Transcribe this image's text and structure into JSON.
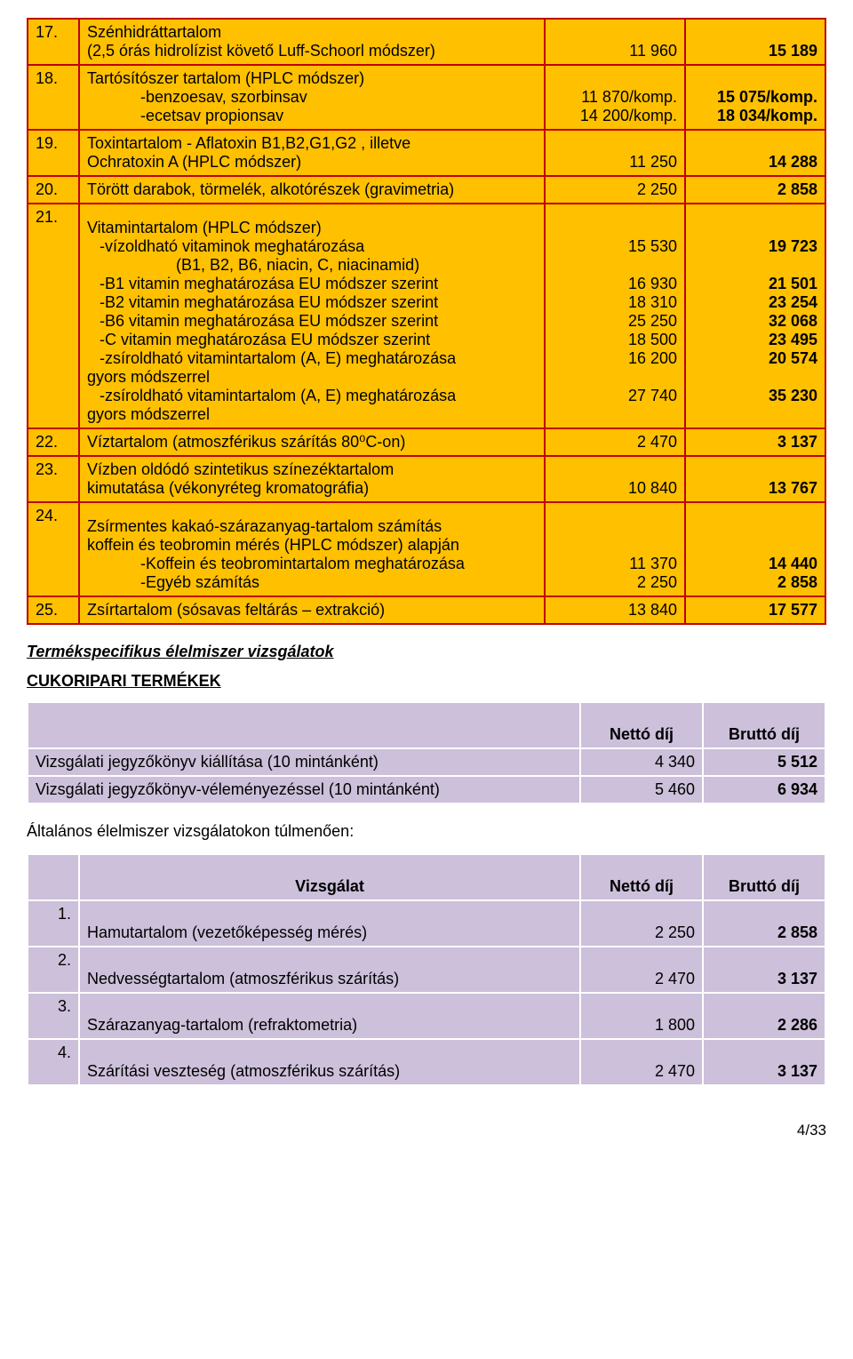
{
  "table1": {
    "rows": [
      {
        "num": "17.",
        "desc_lines": [
          {
            "text": "Szénhidráttartalom",
            "indent": 0
          },
          {
            "text": "(2,5 órás hidrolízist követő Luff-Schoorl módszer)",
            "indent": 0
          }
        ],
        "v1_lines": [
          "",
          "11 960"
        ],
        "v2_lines": [
          "",
          "15 189"
        ],
        "v2_bold": true
      },
      {
        "num": "18.",
        "desc_lines": [
          {
            "text": "Tartósítószer tartalom (HPLC módszer)",
            "indent": 0
          },
          {
            "text": "-benzoesav, szorbinsav",
            "indent": 2
          },
          {
            "text": "-ecetsav propionsav",
            "indent": 2
          }
        ],
        "v1_lines": [
          "",
          "11 870/komp.",
          "14 200/komp."
        ],
        "v2_lines": [
          "",
          "15 075/komp.",
          "18 034/komp."
        ],
        "v2_bold": true
      },
      {
        "num": "19.",
        "desc_lines": [
          {
            "text": "Toxintartalom - Aflatoxin B1,B2,G1,G2 , illetve",
            "indent": 0
          },
          {
            "text": "Ochratoxin A (HPLC módszer)",
            "indent": 0
          }
        ],
        "v1_lines": [
          "",
          "11 250"
        ],
        "v2_lines": [
          "",
          "14 288"
        ],
        "v2_bold": true
      },
      {
        "num": "20.",
        "desc_lines": [
          {
            "text": "Törött darabok, törmelék, alkotórészek (gravimetria)",
            "indent": 0
          }
        ],
        "v1_lines": [
          "2 250"
        ],
        "v2_lines": [
          "2 858"
        ],
        "v2_bold": true
      },
      {
        "num": "21.",
        "desc_lines": [
          {
            "text": "Vitamintartalom (HPLC módszer)",
            "indent": 0
          },
          {
            "text": "-vízoldható vitaminok meghatározása",
            "indent": 1
          },
          {
            "text": "(B1, B2, B6, niacin, C, niacinamid)",
            "indent": 3
          },
          {
            "text": "-B1 vitamin meghatározása EU módszer szerint",
            "indent": 1
          },
          {
            "text": "-B2 vitamin meghatározása EU módszer szerint",
            "indent": 1
          },
          {
            "text": "-B6 vitamin meghatározása EU módszer szerint",
            "indent": 1
          },
          {
            "text": "-C vitamin meghatározása EU módszer szerint",
            "indent": 1
          },
          {
            "text": "-zsíroldható vitamintartalom (A, E) meghatározása",
            "indent": 1
          },
          {
            "text": "gyors módszerrel",
            "indent": 0
          },
          {
            "text": "-zsíroldható vitamintartalom (A, E) meghatározása",
            "indent": 1
          },
          {
            "text": "gyors módszerrel",
            "indent": 0
          }
        ],
        "v1_lines": [
          "",
          "15 530",
          "",
          "16 930",
          "18 310",
          "25 250",
          "18 500",
          "16 200",
          "",
          "27 740",
          ""
        ],
        "v2_lines": [
          "",
          "19 723",
          "",
          "21 501",
          "23 254",
          "32 068",
          "23 495",
          "20 574",
          "",
          "35 230",
          ""
        ],
        "v2_bold": true,
        "top_pad": true
      },
      {
        "num": "22.",
        "desc_lines": [
          {
            "text": "Víztartalom (atmoszférikus szárítás 80⁰C-on)",
            "indent": 0
          }
        ],
        "v1_lines": [
          "2 470"
        ],
        "v2_lines": [
          "3 137"
        ],
        "v2_bold": true
      },
      {
        "num": "23.",
        "desc_lines": [
          {
            "text": "Vízben oldódó szintetikus színezéktartalom",
            "indent": 0
          },
          {
            "text": "kimutatása (vékonyréteg kromatográfia)",
            "indent": 0
          }
        ],
        "v1_lines": [
          "",
          "10 840"
        ],
        "v2_lines": [
          "",
          "13 767"
        ],
        "v2_bold": true
      },
      {
        "num": "24.",
        "desc_lines": [
          {
            "text": "Zsírmentes kakaó-szárazanyag-tartalom számítás",
            "indent": 0
          },
          {
            "text": "koffein és teobromin mérés (HPLC módszer) alapján",
            "indent": 0
          },
          {
            "text": "-Koffein és teobromintartalom meghatározása",
            "indent": 2
          },
          {
            "text": "-Egyéb számítás",
            "indent": 2
          }
        ],
        "v1_lines": [
          "",
          "",
          "11 370",
          "2 250"
        ],
        "v2_lines": [
          "",
          "",
          "14 440",
          "2 858"
        ],
        "v2_bold": true,
        "top_pad": true
      },
      {
        "num": "25.",
        "desc_lines": [
          {
            "text": "Zsírtartalom (sósavas feltárás – extrakció)",
            "indent": 0
          }
        ],
        "v1_lines": [
          "13 840"
        ],
        "v2_lines": [
          "17 577"
        ],
        "v2_bold": true
      }
    ]
  },
  "section_title_1": "Termékspecifikus élelmiszer vizsgálatok",
  "section_title_2": "CUKORIPARI TERMÉKEK",
  "table2": {
    "header": [
      "Nettó díj",
      "Bruttó díj"
    ],
    "rows": [
      {
        "desc": "Vizsgálati jegyzőkönyv kiállítása (10 mintánként)",
        "v1": "4 340",
        "v2": "5 512"
      },
      {
        "desc": "Vizsgálati jegyzőkönyv-véleményezéssel (10 mintánként)",
        "v1": "5 460",
        "v2": "6 934"
      }
    ]
  },
  "plain_1": "Általános élelmiszer vizsgálatokon túlmenően:",
  "table3": {
    "header": [
      "Vizsgálat",
      "Nettó díj",
      "Bruttó díj"
    ],
    "rows": [
      {
        "num": "1.",
        "desc": "Hamutartalom  (vezetőképesség mérés)",
        "v1": "2 250",
        "v2": "2 858"
      },
      {
        "num": "2.",
        "desc": "Nedvességtartalom (atmoszférikus szárítás)",
        "v1": "2 470",
        "v2": "3 137"
      },
      {
        "num": "3.",
        "desc": "Szárazanyag-tartalom (refraktometria)",
        "v1": "1 800",
        "v2": "2 286"
      },
      {
        "num": "4.",
        "desc": "Szárítási veszteség (atmoszférikus szárítás)",
        "v1": "2 470",
        "v2": "3 137"
      }
    ]
  },
  "footer": "4/33"
}
